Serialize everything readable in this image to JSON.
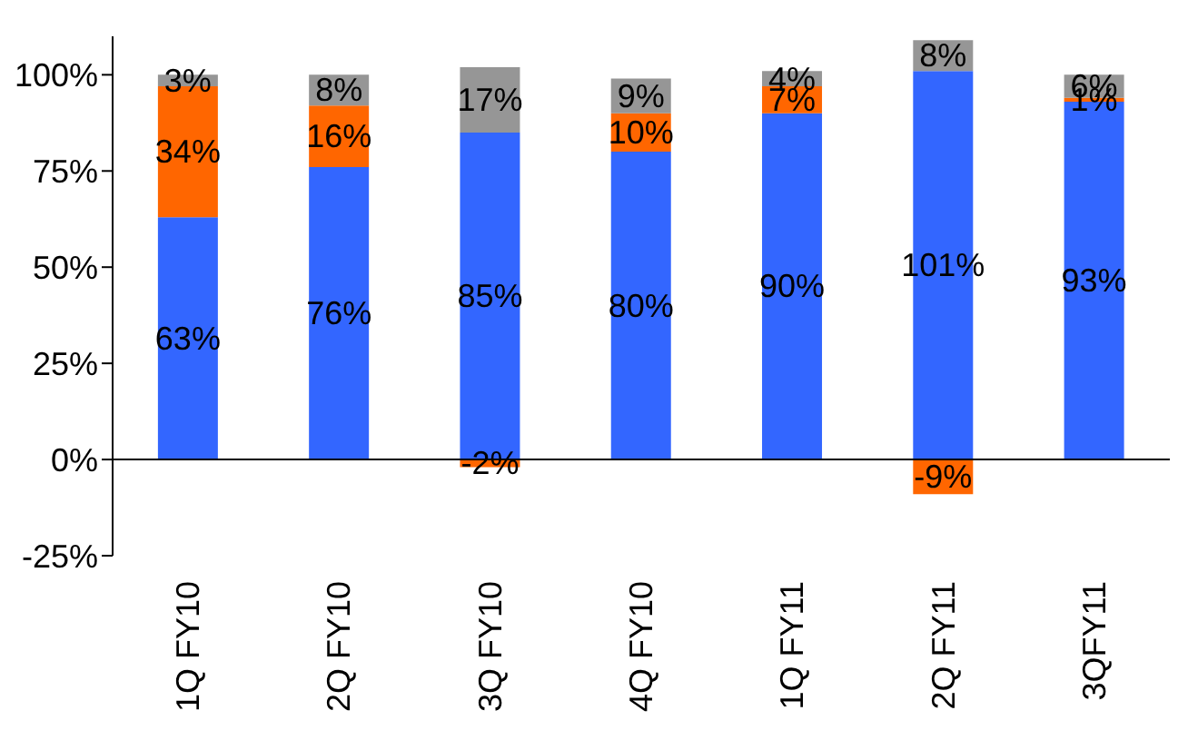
{
  "chart_data": {
    "type": "bar",
    "stacked": true,
    "categories": [
      "1Q FY10",
      "2Q FY10",
      "3Q FY10",
      "4Q FY10",
      "1Q FY11",
      "2Q FY11",
      "3QFY11"
    ],
    "series": [
      {
        "color": "#3366ff",
        "values": [
          63,
          76,
          85,
          80,
          90,
          101,
          93
        ],
        "value_labels": [
          "63%",
          "76%",
          "85%",
          "80%",
          "90%",
          "101%",
          "93%"
        ]
      },
      {
        "color": "#ff6600",
        "values": [
          34,
          16,
          -2,
          10,
          7,
          -9,
          1
        ],
        "value_labels": [
          "34%",
          "16%",
          "-2%",
          "10%",
          "7%",
          "-9%",
          "1%"
        ]
      },
      {
        "color": "#969696",
        "values": [
          3,
          8,
          17,
          9,
          4,
          8,
          6
        ],
        "value_labels": [
          "3%",
          "8%",
          "17%",
          "9%",
          "4%",
          "8%",
          "6%"
        ]
      }
    ],
    "ylim": [
      -25,
      110
    ],
    "yticks": [
      {
        "value": -25,
        "label": "-25%"
      },
      {
        "value": 0,
        "label": "0%"
      },
      {
        "value": 25,
        "label": "25%"
      },
      {
        "value": 50,
        "label": "50%"
      },
      {
        "value": 75,
        "label": "75%"
      },
      {
        "value": 100,
        "label": "100%"
      }
    ],
    "ref_lines": [
      {
        "axis": "y",
        "value": 0,
        "color": "#000000"
      }
    ],
    "grid": false,
    "legend": false
  }
}
